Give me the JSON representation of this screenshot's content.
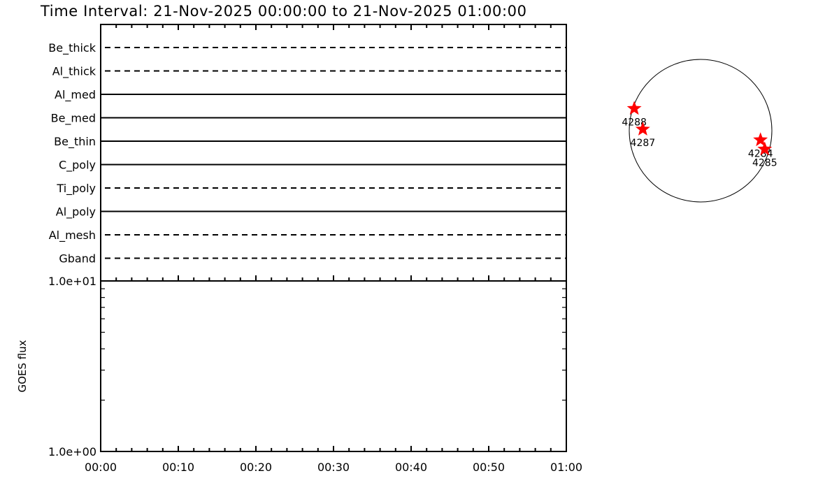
{
  "title": "Time Interval: 21-Nov-2025 00:00:00 to 21-Nov-2025 01:00:00",
  "chart_data": [
    {
      "type": "line",
      "description_of_rows": "filter coverage lines",
      "rows": [
        {
          "label": "Be_thick",
          "style": "dashed"
        },
        {
          "label": "Al_thick",
          "style": "dashed"
        },
        {
          "label": "Al_med",
          "style": "solid"
        },
        {
          "label": "Be_med",
          "style": "solid"
        },
        {
          "label": "Be_thin",
          "style": "solid"
        },
        {
          "label": "C_poly",
          "style": "solid"
        },
        {
          "label": "Ti_poly",
          "style": "dashed"
        },
        {
          "label": "Al_poly",
          "style": "solid"
        },
        {
          "label": "Al_mesh",
          "style": "dashed"
        },
        {
          "label": "Gband",
          "style": "dashed"
        }
      ]
    },
    {
      "type": "line",
      "ylabel": "GOES flux",
      "yscale": "log",
      "ylim": [
        1,
        10
      ],
      "yticklabels": [
        "1.0e+00",
        "1.0e+01"
      ],
      "xlim": [
        "00:00",
        "01:00"
      ],
      "xticklabels": [
        "00:00",
        "00:10",
        "00:20",
        "00:30",
        "00:40",
        "00:50",
        "01:00"
      ],
      "series": []
    },
    {
      "type": "scatter",
      "marker": "star",
      "color": "#ff0000",
      "points": [
        {
          "label": "4288",
          "x": -0.93,
          "y": 0.31
        },
        {
          "label": "4287",
          "x": -0.81,
          "y": 0.02
        },
        {
          "label": "4284",
          "x": 0.84,
          "y": -0.13
        },
        {
          "label": "4285",
          "x": 0.9,
          "y": -0.26
        }
      ]
    }
  ]
}
